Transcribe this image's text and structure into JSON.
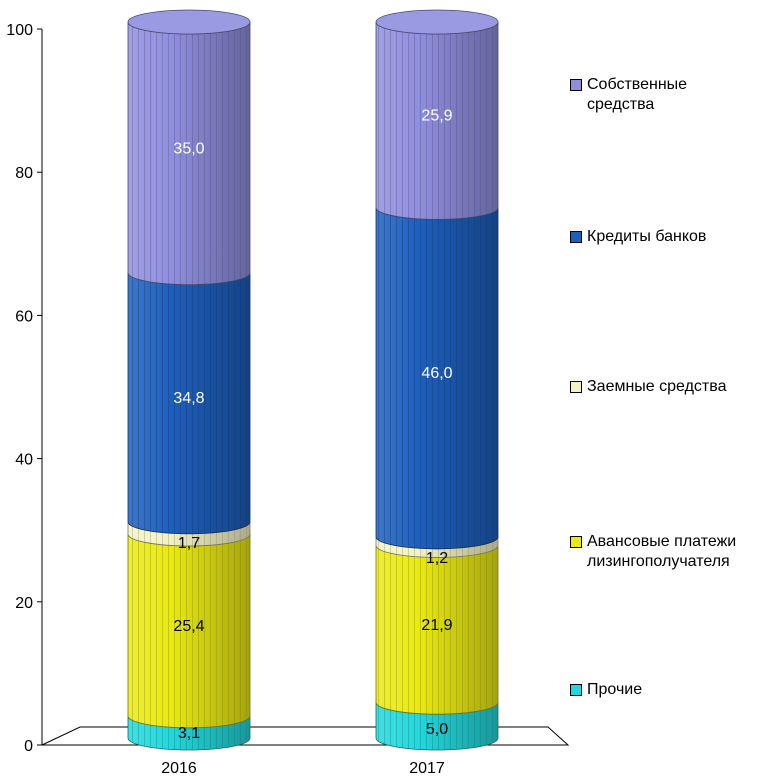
{
  "chart_data": {
    "type": "bar",
    "stacked": true,
    "style": "3d-cylinder",
    "categories": [
      "2016",
      "2017"
    ],
    "ylim": [
      0,
      100
    ],
    "yticks": [
      0,
      20,
      40,
      60,
      80,
      100
    ],
    "grid": false,
    "legend_position": "right",
    "series": [
      {
        "name": "Прочие",
        "values": [
          3.1,
          5.0
        ],
        "labels": [
          "3,1",
          "5,0"
        ],
        "color": "#22d8dc",
        "label_color": "#000000"
      },
      {
        "name": "Авансовые платежи\nлизингополучателя",
        "values": [
          25.4,
          21.9
        ],
        "labels": [
          "25,4",
          "21,9"
        ],
        "color": "#eaea12",
        "label_color": "#000000"
      },
      {
        "name": "Заемные средства",
        "values": [
          1.7,
          1.2
        ],
        "labels": [
          "1,7",
          "1,2"
        ],
        "color": "#f4f2c4",
        "label_color": "#000000"
      },
      {
        "name": "Кредиты банков",
        "values": [
          34.8,
          46.0
        ],
        "labels": [
          "34,8",
          "46,0"
        ],
        "color": "#1d5fbe",
        "label_color": "#ffffff"
      },
      {
        "name": "Собственные\nсредства",
        "values": [
          35.0,
          25.9
        ],
        "labels": [
          "35,0",
          "25,9"
        ],
        "color": "#8f8fe0",
        "label_color": "#ffffff"
      }
    ]
  }
}
